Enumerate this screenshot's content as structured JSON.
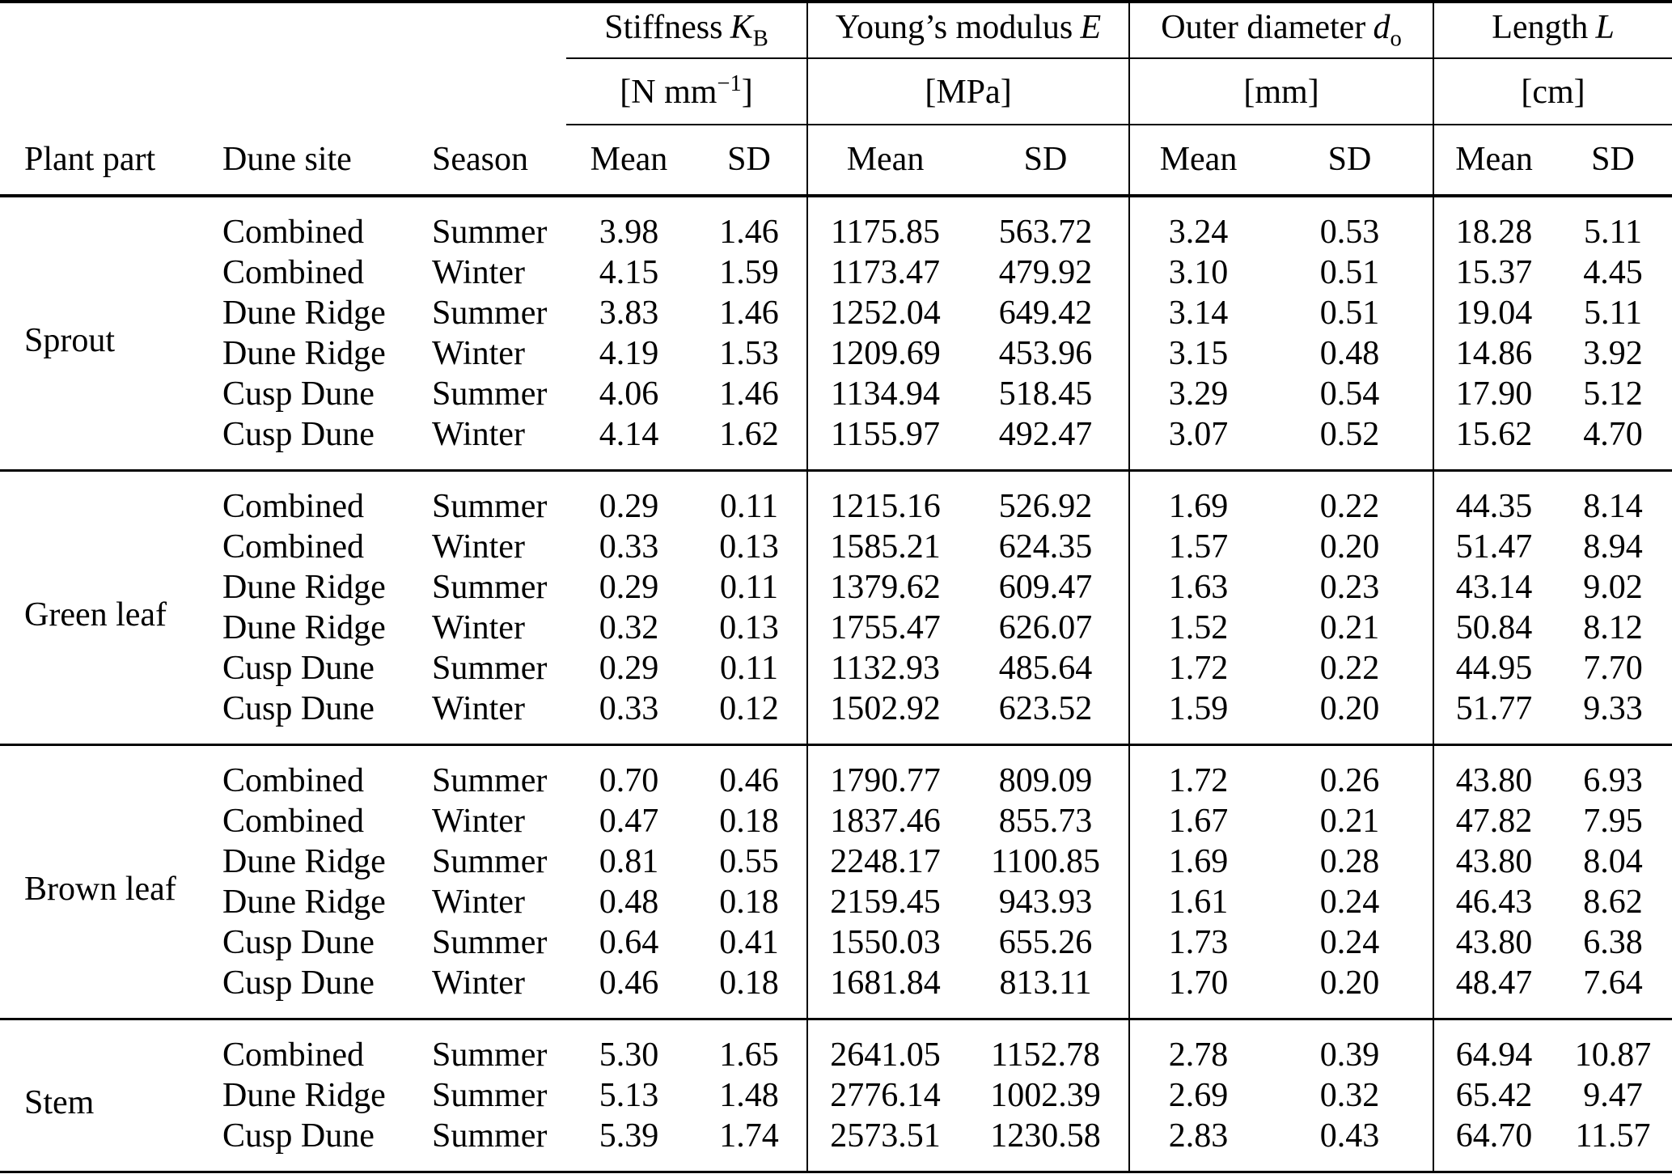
{
  "header": {
    "plant_part": "Plant part",
    "dune_site": "Dune site",
    "season": "Season",
    "mean": "Mean",
    "sd": "SD",
    "groups": [
      {
        "name": "Stiffness",
        "symbol": "K",
        "subscript": "B",
        "unit_open": "[",
        "unit_base": "N mm",
        "unit_sup": "−1",
        "unit_close": "]"
      },
      {
        "name": "Young’s modulus",
        "symbol": "E",
        "subscript": "",
        "unit_open": "[",
        "unit_base": "MPa",
        "unit_sup": "",
        "unit_close": "]"
      },
      {
        "name": "Outer diameter",
        "symbol": "d",
        "subscript": "o",
        "unit_open": "[",
        "unit_base": "mm",
        "unit_sup": "",
        "unit_close": "]"
      },
      {
        "name": "Length",
        "symbol": "L",
        "subscript": "",
        "unit_open": "[",
        "unit_base": "cm",
        "unit_sup": "",
        "unit_close": "]"
      }
    ]
  },
  "sections": [
    {
      "plant_part": "Sprout",
      "rows": [
        {
          "dune_site": "Combined",
          "season": "Summer",
          "stiffness_mean": "3.98",
          "stiffness_sd": "1.46",
          "youngs_mean": "1175.85",
          "youngs_sd": "563.72",
          "diameter_mean": "3.24",
          "diameter_sd": "0.53",
          "length_mean": "18.28",
          "length_sd": "5.11"
        },
        {
          "dune_site": "Combined",
          "season": "Winter",
          "stiffness_mean": "4.15",
          "stiffness_sd": "1.59",
          "youngs_mean": "1173.47",
          "youngs_sd": "479.92",
          "diameter_mean": "3.10",
          "diameter_sd": "0.51",
          "length_mean": "15.37",
          "length_sd": "4.45"
        },
        {
          "dune_site": "Dune Ridge",
          "season": "Summer",
          "stiffness_mean": "3.83",
          "stiffness_sd": "1.46",
          "youngs_mean": "1252.04",
          "youngs_sd": "649.42",
          "diameter_mean": "3.14",
          "diameter_sd": "0.51",
          "length_mean": "19.04",
          "length_sd": "5.11"
        },
        {
          "dune_site": "Dune Ridge",
          "season": "Winter",
          "stiffness_mean": "4.19",
          "stiffness_sd": "1.53",
          "youngs_mean": "1209.69",
          "youngs_sd": "453.96",
          "diameter_mean": "3.15",
          "diameter_sd": "0.48",
          "length_mean": "14.86",
          "length_sd": "3.92"
        },
        {
          "dune_site": "Cusp Dune",
          "season": "Summer",
          "stiffness_mean": "4.06",
          "stiffness_sd": "1.46",
          "youngs_mean": "1134.94",
          "youngs_sd": "518.45",
          "diameter_mean": "3.29",
          "diameter_sd": "0.54",
          "length_mean": "17.90",
          "length_sd": "5.12"
        },
        {
          "dune_site": "Cusp Dune",
          "season": "Winter",
          "stiffness_mean": "4.14",
          "stiffness_sd": "1.62",
          "youngs_mean": "1155.97",
          "youngs_sd": "492.47",
          "diameter_mean": "3.07",
          "diameter_sd": "0.52",
          "length_mean": "15.62",
          "length_sd": "4.70"
        }
      ]
    },
    {
      "plant_part": "Green leaf",
      "rows": [
        {
          "dune_site": "Combined",
          "season": "Summer",
          "stiffness_mean": "0.29",
          "stiffness_sd": "0.11",
          "youngs_mean": "1215.16",
          "youngs_sd": "526.92",
          "diameter_mean": "1.69",
          "diameter_sd": "0.22",
          "length_mean": "44.35",
          "length_sd": "8.14"
        },
        {
          "dune_site": "Combined",
          "season": "Winter",
          "stiffness_mean": "0.33",
          "stiffness_sd": "0.13",
          "youngs_mean": "1585.21",
          "youngs_sd": "624.35",
          "diameter_mean": "1.57",
          "diameter_sd": "0.20",
          "length_mean": "51.47",
          "length_sd": "8.94"
        },
        {
          "dune_site": "Dune Ridge",
          "season": "Summer",
          "stiffness_mean": "0.29",
          "stiffness_sd": "0.11",
          "youngs_mean": "1379.62",
          "youngs_sd": "609.47",
          "diameter_mean": "1.63",
          "diameter_sd": "0.23",
          "length_mean": "43.14",
          "length_sd": "9.02"
        },
        {
          "dune_site": "Dune Ridge",
          "season": "Winter",
          "stiffness_mean": "0.32",
          "stiffness_sd": "0.13",
          "youngs_mean": "1755.47",
          "youngs_sd": "626.07",
          "diameter_mean": "1.52",
          "diameter_sd": "0.21",
          "length_mean": "50.84",
          "length_sd": "8.12"
        },
        {
          "dune_site": "Cusp Dune",
          "season": "Summer",
          "stiffness_mean": "0.29",
          "stiffness_sd": "0.11",
          "youngs_mean": "1132.93",
          "youngs_sd": "485.64",
          "diameter_mean": "1.72",
          "diameter_sd": "0.22",
          "length_mean": "44.95",
          "length_sd": "7.70"
        },
        {
          "dune_site": "Cusp Dune",
          "season": "Winter",
          "stiffness_mean": "0.33",
          "stiffness_sd": "0.12",
          "youngs_mean": "1502.92",
          "youngs_sd": "623.52",
          "diameter_mean": "1.59",
          "diameter_sd": "0.20",
          "length_mean": "51.77",
          "length_sd": "9.33"
        }
      ]
    },
    {
      "plant_part": "Brown leaf",
      "rows": [
        {
          "dune_site": "Combined",
          "season": "Summer",
          "stiffness_mean": "0.70",
          "stiffness_sd": "0.46",
          "youngs_mean": "1790.77",
          "youngs_sd": "809.09",
          "diameter_mean": "1.72",
          "diameter_sd": "0.26",
          "length_mean": "43.80",
          "length_sd": "6.93"
        },
        {
          "dune_site": "Combined",
          "season": "Winter",
          "stiffness_mean": "0.47",
          "stiffness_sd": "0.18",
          "youngs_mean": "1837.46",
          "youngs_sd": "855.73",
          "diameter_mean": "1.67",
          "diameter_sd": "0.21",
          "length_mean": "47.82",
          "length_sd": "7.95"
        },
        {
          "dune_site": "Dune Ridge",
          "season": "Summer",
          "stiffness_mean": "0.81",
          "stiffness_sd": "0.55",
          "youngs_mean": "2248.17",
          "youngs_sd": "1100.85",
          "diameter_mean": "1.69",
          "diameter_sd": "0.28",
          "length_mean": "43.80",
          "length_sd": "8.04"
        },
        {
          "dune_site": "Dune Ridge",
          "season": "Winter",
          "stiffness_mean": "0.48",
          "stiffness_sd": "0.18",
          "youngs_mean": "2159.45",
          "youngs_sd": "943.93",
          "diameter_mean": "1.61",
          "diameter_sd": "0.24",
          "length_mean": "46.43",
          "length_sd": "8.62"
        },
        {
          "dune_site": "Cusp Dune",
          "season": "Summer",
          "stiffness_mean": "0.64",
          "stiffness_sd": "0.41",
          "youngs_mean": "1550.03",
          "youngs_sd": "655.26",
          "diameter_mean": "1.73",
          "diameter_sd": "0.24",
          "length_mean": "43.80",
          "length_sd": "6.38"
        },
        {
          "dune_site": "Cusp Dune",
          "season": "Winter",
          "stiffness_mean": "0.46",
          "stiffness_sd": "0.18",
          "youngs_mean": "1681.84",
          "youngs_sd": "813.11",
          "diameter_mean": "1.70",
          "diameter_sd": "0.20",
          "length_mean": "48.47",
          "length_sd": "7.64"
        }
      ]
    },
    {
      "plant_part": "Stem",
      "rows": [
        {
          "dune_site": "Combined",
          "season": "Summer",
          "stiffness_mean": "5.30",
          "stiffness_sd": "1.65",
          "youngs_mean": "2641.05",
          "youngs_sd": "1152.78",
          "diameter_mean": "2.78",
          "diameter_sd": "0.39",
          "length_mean": "64.94",
          "length_sd": "10.87"
        },
        {
          "dune_site": "Dune Ridge",
          "season": "Summer",
          "stiffness_mean": "5.13",
          "stiffness_sd": "1.48",
          "youngs_mean": "2776.14",
          "youngs_sd": "1002.39",
          "diameter_mean": "2.69",
          "diameter_sd": "0.32",
          "length_mean": "65.42",
          "length_sd": "9.47"
        },
        {
          "dune_site": "Cusp Dune",
          "season": "Summer",
          "stiffness_mean": "5.39",
          "stiffness_sd": "1.74",
          "youngs_mean": "2573.51",
          "youngs_sd": "1230.58",
          "diameter_mean": "2.83",
          "diameter_sd": "0.43",
          "length_mean": "64.70",
          "length_sd": "11.57"
        }
      ]
    }
  ]
}
